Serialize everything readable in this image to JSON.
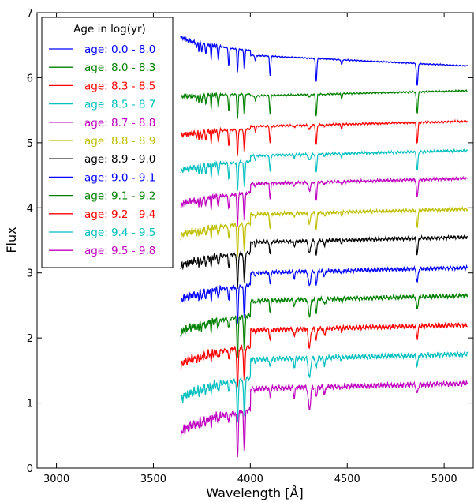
{
  "chart_data": {
    "type": "line",
    "xlabel": "Wavelength [Å]",
    "ylabel": "Flux",
    "xlim": [
      2900,
      5150
    ],
    "ylim": [
      0,
      7
    ],
    "xticks": [
      3000,
      3500,
      4000,
      4500,
      5000
    ],
    "yticks": [
      0,
      1,
      2,
      3,
      4,
      5,
      6,
      7
    ],
    "grid": false,
    "legend": {
      "title": "Age in log(yr)",
      "placement": "top-left"
    },
    "series": [
      {
        "name": "age: 0.0 - 8.0",
        "color": "#0000ff",
        "offset": 6.2,
        "blue_end": 6.65,
        "red_end": 6.18
      },
      {
        "name": "age: 8.0 - 8.3",
        "color": "#008000",
        "offset": 5.75,
        "blue_end": 5.7,
        "red_end": 5.8
      },
      {
        "name": "age: 8.3 - 8.5",
        "color": "#ff0000",
        "offset": 5.3,
        "blue_end": 5.1,
        "red_end": 5.33
      },
      {
        "name": "age: 8.5 - 8.7",
        "color": "#00bfbf",
        "offset": 4.85,
        "blue_end": 4.55,
        "red_end": 4.88
      },
      {
        "name": "age: 8.7 - 8.8",
        "color": "#bf00bf",
        "offset": 4.4,
        "blue_end": 4.02,
        "red_end": 4.45
      },
      {
        "name": "age: 8.8 - 8.9",
        "color": "#bfbf00",
        "offset": 3.95,
        "blue_end": 3.55,
        "red_end": 3.98
      },
      {
        "name": "age: 8.9 - 9.0",
        "color": "#000000",
        "offset": 3.5,
        "blue_end": 3.08,
        "red_end": 3.55
      },
      {
        "name": "age: 9.0 - 9.1",
        "color": "#0000ff",
        "offset": 3.05,
        "blue_end": 2.55,
        "red_end": 3.08
      },
      {
        "name": "age: 9.1 - 9.2",
        "color": "#008000",
        "offset": 2.6,
        "blue_end": 2.05,
        "red_end": 2.65
      },
      {
        "name": "age: 9.2 - 9.4",
        "color": "#ff0000",
        "offset": 2.15,
        "blue_end": 1.55,
        "red_end": 2.2
      },
      {
        "name": "age: 9.4 - 9.5",
        "color": "#00bfbf",
        "offset": 1.7,
        "blue_end": 1.02,
        "red_end": 1.75
      },
      {
        "name": "age: 9.5 - 9.8",
        "color": "#bf00bf",
        "offset": 1.25,
        "blue_end": 0.5,
        "red_end": 1.3
      }
    ],
    "x_range": [
      3640,
      5120
    ]
  }
}
